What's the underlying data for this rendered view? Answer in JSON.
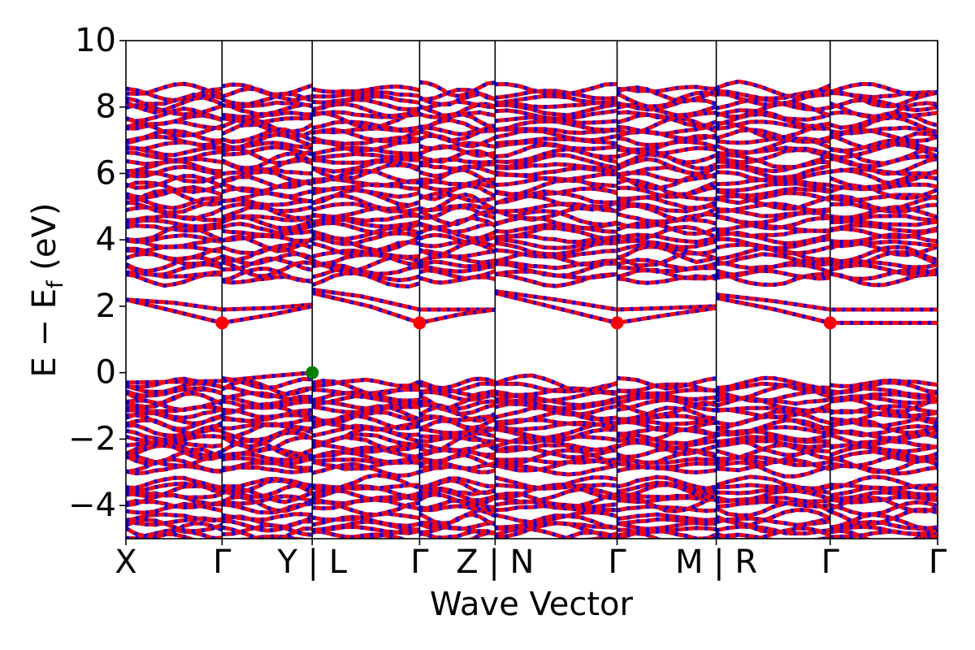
{
  "chart_data": {
    "type": "line",
    "chart_subtype": "electronic band structure",
    "xlabel": "Wave Vector",
    "ylabel_main": "E − E",
    "ylabel_sub": "f",
    "ylabel_unit": "(eV)",
    "ylim": [
      -5,
      10
    ],
    "yticks": [
      -4,
      -2,
      0,
      2,
      4,
      6,
      8,
      10
    ],
    "ytick_labels": [
      "−4",
      "−2",
      "0",
      "2",
      "4",
      "6",
      "8",
      "10"
    ],
    "x_range": [
      0,
      1
    ],
    "kpoints": [
      {
        "label": "X",
        "x": 0.0
      },
      {
        "label": "Γ",
        "x": 0.1184
      },
      {
        "label": "Y | L",
        "x": 0.2295
      },
      {
        "label": "Γ",
        "x": 0.3618
      },
      {
        "label": "Z | N",
        "x": 0.4548
      },
      {
        "label": "Γ",
        "x": 0.6051
      },
      {
        "label": "M | R",
        "x": 0.7273
      },
      {
        "label": "Γ",
        "x": 0.8676
      }
    ],
    "vlines": [
      0.1184,
      0.2295,
      0.3618,
      0.4548,
      0.6051,
      0.7273,
      0.8676,
      1.0
    ],
    "grid": false,
    "series_colors": {
      "spin_up": "#ff0000",
      "spin_down": "#0000ff"
    },
    "band_style": "red solid with blue dashed overlay",
    "cbm_markers": {
      "color": "#ff0000",
      "points": [
        {
          "x": 0.1184,
          "y": 1.5
        },
        {
          "x": 0.3618,
          "y": 1.5
        },
        {
          "x": 0.6051,
          "y": 1.5
        },
        {
          "x": 0.8676,
          "y": 1.5
        }
      ]
    },
    "vbm_marker": {
      "color": "#008000",
      "x": 0.2295,
      "y": 0.0
    },
    "conduction_bands_low": [
      [
        [
          0.0,
          2.2
        ],
        [
          0.06,
          2.1
        ],
        [
          0.1184,
          1.9
        ],
        [
          0.18,
          1.95
        ],
        [
          0.2295,
          2.05
        ]
      ],
      [
        [
          0.0,
          2.2
        ],
        [
          0.06,
          1.85
        ],
        [
          0.1184,
          1.5
        ],
        [
          0.18,
          1.75
        ],
        [
          0.2295,
          2.0
        ]
      ],
      [
        [
          0.2295,
          2.5
        ],
        [
          0.29,
          2.3
        ],
        [
          0.3618,
          1.9
        ],
        [
          0.41,
          1.9
        ],
        [
          0.4548,
          1.9
        ]
      ],
      [
        [
          0.2295,
          2.4
        ],
        [
          0.3,
          2.0
        ],
        [
          0.3618,
          1.5
        ],
        [
          0.41,
          1.75
        ],
        [
          0.4548,
          1.9
        ]
      ],
      [
        [
          0.4548,
          2.45
        ],
        [
          0.53,
          2.2
        ],
        [
          0.6051,
          1.9
        ],
        [
          0.67,
          1.95
        ],
        [
          0.7273,
          2.0
        ]
      ],
      [
        [
          0.4548,
          2.4
        ],
        [
          0.53,
          1.95
        ],
        [
          0.6051,
          1.5
        ],
        [
          0.67,
          1.75
        ],
        [
          0.7273,
          1.95
        ]
      ],
      [
        [
          0.7273,
          2.35
        ],
        [
          0.8,
          2.15
        ],
        [
          0.8676,
          1.9
        ],
        [
          0.93,
          1.9
        ],
        [
          1.0,
          1.9
        ]
      ],
      [
        [
          0.7273,
          2.25
        ],
        [
          0.8,
          1.9
        ],
        [
          0.8676,
          1.5
        ],
        [
          0.93,
          1.5
        ],
        [
          1.0,
          1.5
        ]
      ]
    ],
    "valence_top": [
      [
        0.0,
        -0.3
      ],
      [
        0.1184,
        -0.25
      ],
      [
        0.18,
        -0.1
      ],
      [
        0.2295,
        0.0
      ]
    ],
    "conduction_manifold": {
      "from": 2.8,
      "to": 8.6
    },
    "valence_manifold": {
      "from": -5.0,
      "to": -0.3
    },
    "gaps": [
      {
        "from": 2.25,
        "to": 2.8
      },
      {
        "from": -3.2,
        "to": -2.95
      },
      {
        "from": -4.35,
        "to": -4.1
      }
    ]
  }
}
